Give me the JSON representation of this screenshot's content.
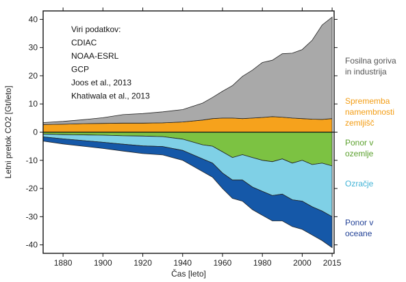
{
  "chart_data": {
    "type": "area",
    "xlabel": "Čas [leto]",
    "ylabel": "Letni pretok CO2 [Gt/leto]",
    "xlim": [
      1870,
      2016
    ],
    "ylim": [
      -43,
      43
    ],
    "xticks": [
      1880,
      1900,
      1920,
      1940,
      1960,
      1980,
      2000,
      2015
    ],
    "yticks": [
      40,
      30,
      20,
      10,
      0,
      -10,
      -20,
      -30,
      -40
    ],
    "x_tick_labels": [
      "1880",
      "1900",
      "1920",
      "1940",
      "1960",
      "1980",
      "2000",
      "2015"
    ],
    "y_tick_labels": [
      "40",
      "30",
      "20",
      "10",
      "0",
      "-10",
      "-20",
      "-30",
      "-40"
    ],
    "sources_title": "Viri podatkov:",
    "sources": [
      "CDIAC",
      "NOAA-ESRL",
      "GCP",
      "Joos et al., 2013",
      "Khatiwala et al., 2013"
    ],
    "x": [
      1870,
      1880,
      1890,
      1900,
      1910,
      1920,
      1930,
      1940,
      1950,
      1955,
      1960,
      1965,
      1970,
      1975,
      1980,
      1985,
      1990,
      1995,
      2000,
      2005,
      2010,
      2015
    ],
    "series": [
      {
        "name": "Fosilna goriva in industrija",
        "legend_lines": [
          "Fosilna goriva",
          "in industrija"
        ],
        "color": "#a9a9a9",
        "label_color": "#555555",
        "values": [
          0.7,
          1.0,
          1.4,
          2.0,
          3.0,
          3.4,
          3.9,
          4.4,
          6.0,
          7.5,
          9.5,
          11.5,
          15.0,
          17.0,
          19.5,
          20.0,
          22.5,
          23.0,
          24.5,
          28.0,
          33.5,
          36.0
        ]
      },
      {
        "name": "Sprememba namembnosti zemljišč",
        "legend_lines": [
          "Sprememba",
          "namembnosti",
          "zemljišč"
        ],
        "color": "#f6a21c",
        "label_color": "#f39c12",
        "values": [
          2.7,
          2.8,
          3.0,
          3.1,
          3.2,
          3.2,
          3.3,
          3.6,
          4.3,
          4.8,
          5.0,
          5.0,
          4.8,
          5.0,
          5.2,
          5.5,
          5.3,
          5.0,
          4.8,
          4.6,
          4.5,
          4.8
        ]
      },
      {
        "name": "Ponor v ozemlje",
        "legend_lines": [
          "Ponor v",
          "ozemlje"
        ],
        "color": "#7cc242",
        "label_color": "#5aa02c",
        "values": [
          -0.7,
          -0.9,
          -1.0,
          -1.1,
          -1.3,
          -1.4,
          -1.6,
          -2.5,
          -4.5,
          -5.0,
          -7.0,
          -9.0,
          -8.0,
          -9.0,
          -10.0,
          -10.5,
          -9.5,
          -11.0,
          -10.0,
          -11.5,
          -11.0,
          -12.0
        ]
      },
      {
        "name": "Ozračje",
        "legend_lines": [
          "Ozračje"
        ],
        "color": "#7fd0e6",
        "label_color": "#3fb2d6",
        "values": [
          -1.0,
          -1.5,
          -2.0,
          -2.5,
          -3.0,
          -3.5,
          -3.5,
          -4.0,
          -5.0,
          -6.0,
          -7.5,
          -8.0,
          -9.0,
          -10.5,
          -11.0,
          -12.0,
          -12.5,
          -13.0,
          -14.5,
          -15.0,
          -17.0,
          -18.0
        ]
      },
      {
        "name": "Ponor v oceane",
        "legend_lines": [
          "Ponor v",
          "oceane"
        ],
        "color": "#1558a8",
        "label_color": "#1f3f95",
        "values": [
          -1.5,
          -1.8,
          -2.0,
          -2.2,
          -2.4,
          -2.7,
          -3.0,
          -3.5,
          -4.5,
          -5.0,
          -5.5,
          -6.5,
          -7.5,
          -8.0,
          -8.5,
          -9.0,
          -9.5,
          -9.5,
          -10.0,
          -10.0,
          -10.5,
          -11.0
        ]
      }
    ]
  }
}
